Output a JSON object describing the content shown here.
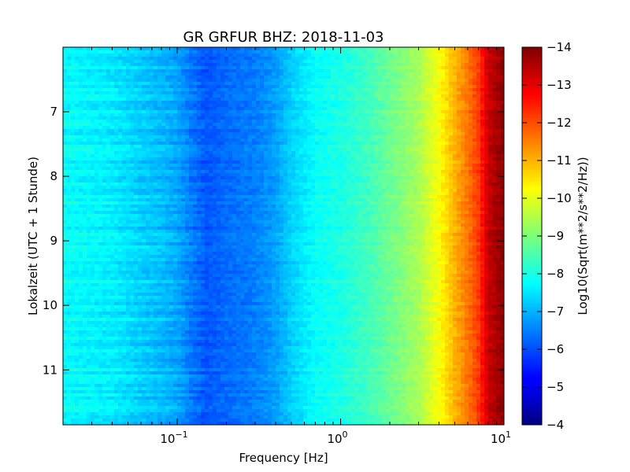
{
  "chart_data": {
    "type": "heatmap",
    "title": "GR GRFUR BHZ: 2018-11-03",
    "xlabel": "Frequency [Hz]",
    "ylabel": "Lokalzeit (UTC + 1 Stunde)",
    "xscale": "log",
    "xlim": [
      0.02,
      10
    ],
    "ylim": [
      6.0,
      11.85
    ],
    "y_inverted": true,
    "x_ticks": [
      {
        "value": 0.1,
        "base": "10",
        "exp": "−1"
      },
      {
        "value": 1,
        "base": "10",
        "exp": "0"
      },
      {
        "value": 10,
        "base": "10",
        "exp": "1"
      }
    ],
    "y_ticks": [
      {
        "value": 7,
        "label": "7"
      },
      {
        "value": 8,
        "label": "8"
      },
      {
        "value": 9,
        "label": "9"
      },
      {
        "value": 10,
        "label": "10"
      },
      {
        "value": 11,
        "label": "11"
      }
    ],
    "colorbar": {
      "label": "Log10(Sqrt(m**2/s**2/Hz))",
      "range": [
        -14,
        -4
      ],
      "colormap": "jet",
      "ticks": [
        -4,
        -5,
        -6,
        -7,
        -8,
        -9,
        -10,
        -11,
        -12,
        -13,
        -14
      ],
      "tick_labels": [
        "−4",
        "−5",
        "−6",
        "−7",
        "−8",
        "−9",
        "−10",
        "−11",
        "−12",
        "−13",
        "−14"
      ]
    },
    "spectrum_profile": [
      {
        "freq": 0.02,
        "value": -7.8
      },
      {
        "freq": 0.04,
        "value": -7.6
      },
      {
        "freq": 0.06,
        "value": -7.3
      },
      {
        "freq": 0.08,
        "value": -7.1
      },
      {
        "freq": 0.1,
        "value": -6.9
      },
      {
        "freq": 0.12,
        "value": -6.5
      },
      {
        "freq": 0.15,
        "value": -6.1
      },
      {
        "freq": 0.2,
        "value": -6.3
      },
      {
        "freq": 0.3,
        "value": -6.5
      },
      {
        "freq": 0.4,
        "value": -6.8
      },
      {
        "freq": 0.5,
        "value": -7.3
      },
      {
        "freq": 0.7,
        "value": -7.8
      },
      {
        "freq": 1.0,
        "value": -8.0
      },
      {
        "freq": 1.5,
        "value": -8.4
      },
      {
        "freq": 2.0,
        "value": -8.8
      },
      {
        "freq": 3.0,
        "value": -9.4
      },
      {
        "freq": 4.0,
        "value": -10.2
      },
      {
        "freq": 5.0,
        "value": -11.0
      },
      {
        "freq": 6.0,
        "value": -11.6
      },
      {
        "freq": 7.0,
        "value": -12.2
      },
      {
        "freq": 8.0,
        "value": -13.3
      },
      {
        "freq": 10.0,
        "value": -13.9
      }
    ],
    "grid": false
  }
}
